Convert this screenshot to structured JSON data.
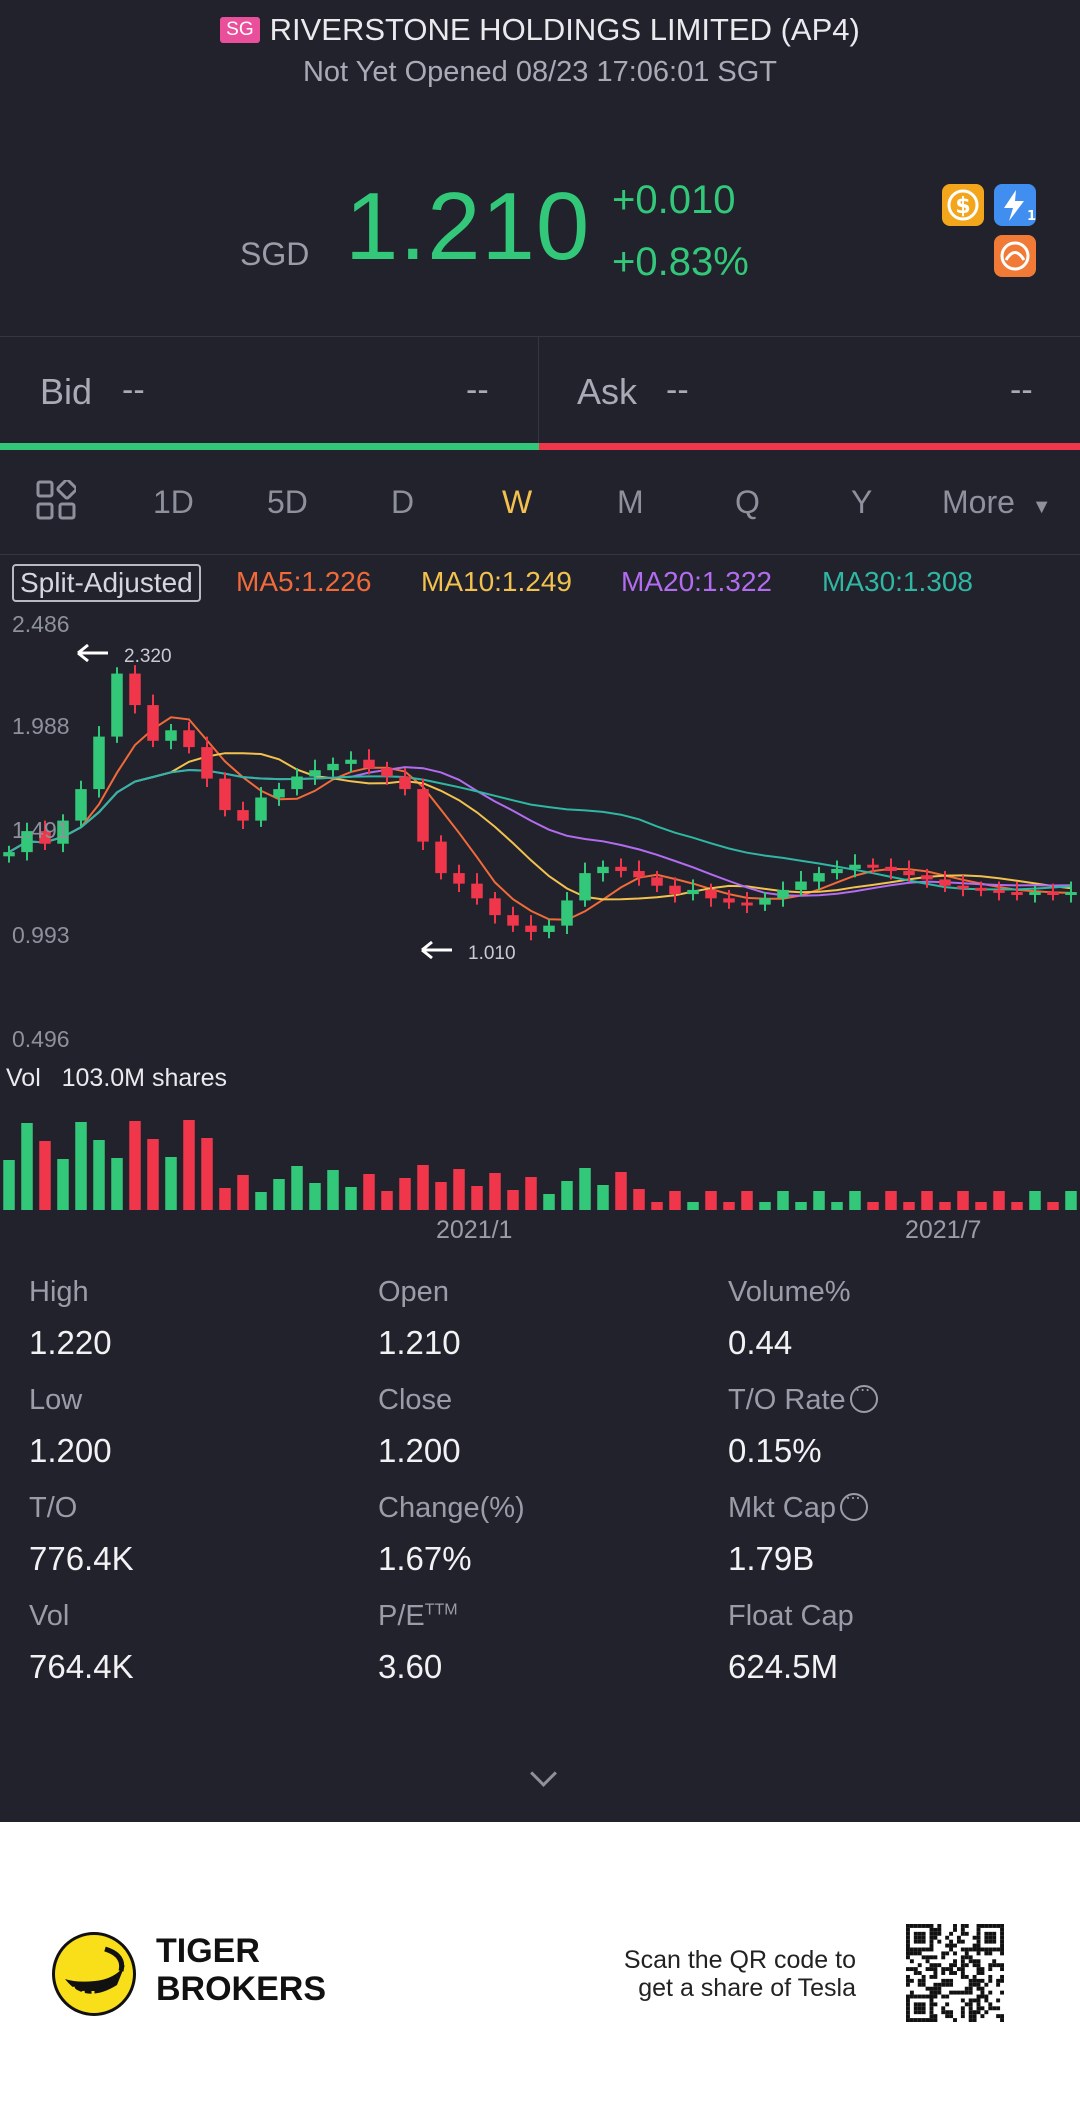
{
  "header": {
    "market_badge": "SG",
    "title": "RIVERSTONE HOLDINGS LIMITED (AP4)",
    "status": "Not Yet Opened 08/23 17:06:01 SGT",
    "currency": "SGD",
    "price": "1.210",
    "change": "+0.010",
    "change_pct": "+0.83%",
    "icons": [
      "dollar-icon",
      "lightning-icon",
      "hk-connect-icon"
    ]
  },
  "bid_ask": {
    "bid_label": "Bid",
    "bid_price": "--",
    "bid_size": "--",
    "ask_label": "Ask",
    "ask_price": "--",
    "ask_size": "--"
  },
  "tabs": {
    "items": [
      "1D",
      "5D",
      "D",
      "W",
      "M",
      "Q",
      "Y",
      "More"
    ],
    "active": "W"
  },
  "indicators": {
    "split": "Split-Adjusted",
    "ma5": "MA5:1.226",
    "ma10": "MA10:1.249",
    "ma20": "MA20:1.322",
    "ma30": "MA30:1.308"
  },
  "colors": {
    "up": "#33c77a",
    "down": "#f0364b",
    "ma5": "#f06a3a",
    "ma10": "#f2c14e",
    "ma20": "#b36cf0",
    "ma30": "#2fb7a4",
    "active_tab": "#f2c14e"
  },
  "chart_data": {
    "type": "candlestick",
    "y_ticks": [
      "2.486",
      "1.988",
      "1.491",
      "0.993",
      "0.496"
    ],
    "high_marker": "2.320",
    "low_marker": "1.010",
    "x_labels": [
      "2021/1",
      "2021/7"
    ],
    "volume_label": "Vol",
    "volume_value": "103.0M shares"
  },
  "stats": [
    {
      "label": "High",
      "value": "1.220"
    },
    {
      "label": "Open",
      "value": "1.210"
    },
    {
      "label": "Volume%",
      "value": "0.44"
    },
    {
      "label": "Low",
      "value": "1.200"
    },
    {
      "label": "Close",
      "value": "1.200"
    },
    {
      "label": "T/O Rate",
      "value": "0.15%"
    },
    {
      "label": "T/O",
      "value": "776.4K"
    },
    {
      "label": "Change(%)",
      "value": "1.67%"
    },
    {
      "label": "Mkt Cap",
      "value": "1.79B"
    },
    {
      "label": "Vol",
      "value": "764.4K"
    },
    {
      "label": "P/E",
      "label_sup": "TTM",
      "value": "3.60"
    },
    {
      "label": "Float Cap",
      "value": "624.5M"
    }
  ],
  "footer": {
    "brand_line1": "TIGER",
    "brand_line2": "BROKERS",
    "scan_line1": "Scan the QR code to",
    "scan_line2": "get a share of Tesla"
  }
}
